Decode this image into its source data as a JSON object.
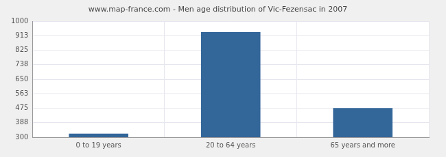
{
  "chart_data": {
    "type": "bar",
    "title": "www.map-france.com - Men age distribution of Vic-Fezensac in 2007",
    "categories": [
      "0 to 19 years",
      "20 to 64 years",
      "65 years and more"
    ],
    "values": [
      322,
      935,
      476
    ],
    "color": "#336699",
    "ylim": [
      300,
      1000
    ],
    "yticks": [
      300,
      388,
      475,
      563,
      650,
      738,
      825,
      913,
      1000
    ],
    "grid": true
  }
}
